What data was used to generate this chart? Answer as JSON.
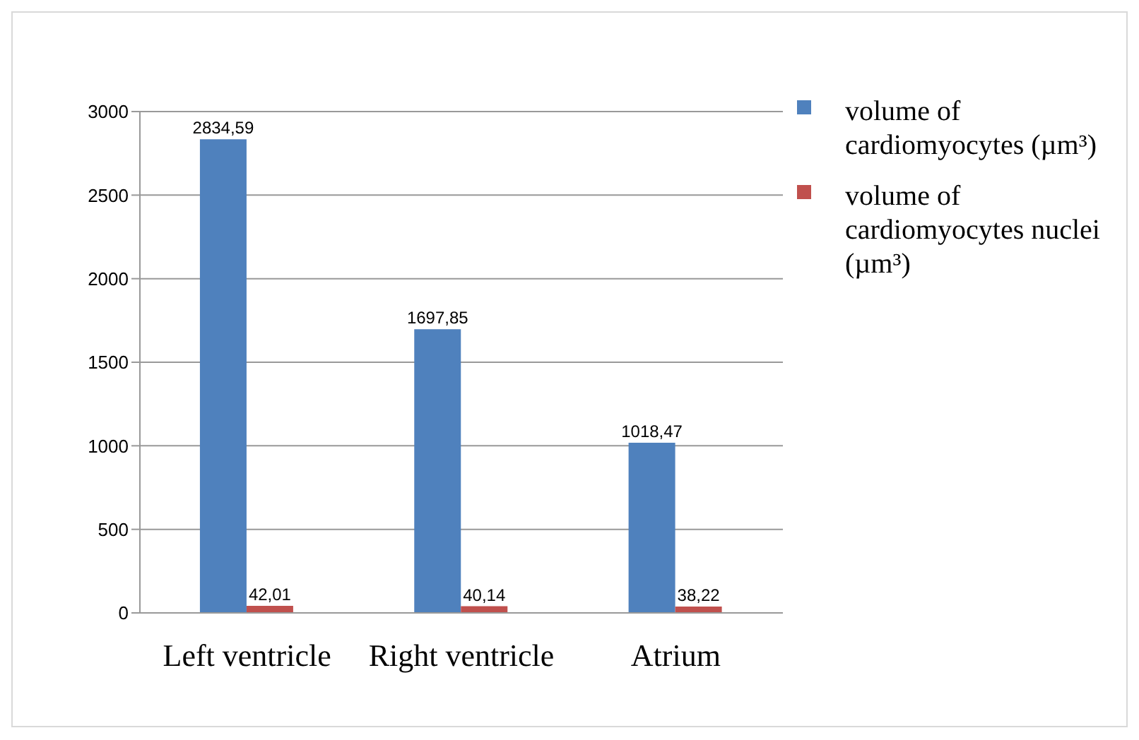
{
  "chart_data": {
    "type": "bar",
    "categories": [
      "Left ventricle",
      "Right ventricle",
      "Atrium"
    ],
    "series": [
      {
        "name": "volume of cardiomyocytes (µm³)",
        "color": "#4f81bd",
        "values": [
          2834.59,
          1697.85,
          1018.47
        ],
        "value_labels": [
          "2834,59",
          "1697,85",
          "1018,47"
        ]
      },
      {
        "name": "volume of cardiomyocytes nuclei (µm³)",
        "color": "#c0504d",
        "values": [
          42.01,
          40.14,
          38.22
        ],
        "value_labels": [
          "42,01",
          "40,14",
          "38,22"
        ]
      }
    ],
    "ylim": [
      0,
      3000
    ],
    "yticks": [
      0,
      500,
      1000,
      1500,
      2000,
      2500,
      3000
    ],
    "grid": "y",
    "legend": "right"
  }
}
